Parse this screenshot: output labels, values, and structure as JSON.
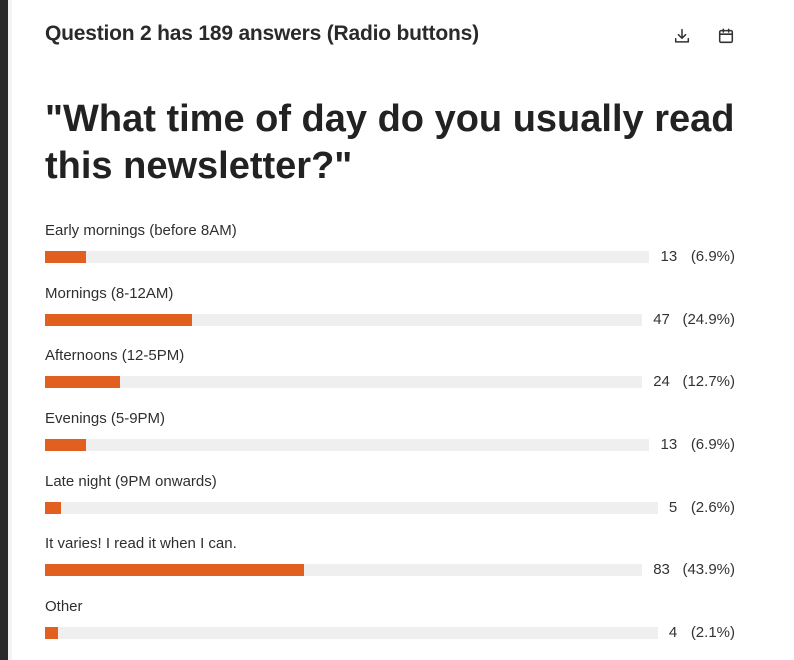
{
  "header": {
    "title": "Question 2 has 189 answers (Radio buttons)",
    "download_icon": "download-icon",
    "calendar_icon": "calendar-icon"
  },
  "question": "\"What time of day do you usually read this newsletter?\"",
  "colors": {
    "bar": "#e2601f",
    "track": "#efefef"
  },
  "chart_data": {
    "type": "bar",
    "orientation": "horizontal",
    "total": 189,
    "categories": [
      "Early mornings (before 8AM)",
      "Mornings (8-12AM)",
      "Afternoons (12-5PM)",
      "Evenings (5-9PM)",
      "Late night (9PM onwards)",
      "It varies! I read it when I can.",
      "Other"
    ],
    "values": [
      13,
      47,
      24,
      13,
      5,
      83,
      4
    ],
    "percent_labels": [
      "(6.9%)",
      "(24.9%)",
      "(12.7%)",
      "(6.9%)",
      "(2.6%)",
      "(43.9%)",
      "(2.1%)"
    ],
    "xlim": [
      0,
      189
    ]
  }
}
